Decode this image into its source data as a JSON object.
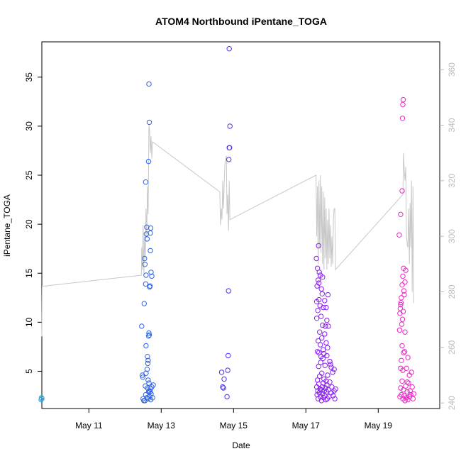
{
  "chart_data": {
    "type": "scatter",
    "title": "ATOM4 Northbound iPentane_TOGA",
    "xlabel": "Date",
    "ylabel": "iPentane_TOGA",
    "ylim": [
      1.2,
      38.6
    ],
    "y2lim": [
      238.0,
      370.0
    ],
    "xlim_days": [
      9.7,
      20.7
    ],
    "x_ticks": [
      {
        "day": 11,
        "label": "May 11"
      },
      {
        "day": 13,
        "label": "May 13"
      },
      {
        "day": 15,
        "label": "May 15"
      },
      {
        "day": 17,
        "label": "May 17"
      },
      {
        "day": 19,
        "label": "May 19"
      }
    ],
    "y_ticks": [
      5,
      10,
      15,
      20,
      25,
      30,
      35
    ],
    "y2_ticks": [
      240,
      260,
      280,
      300,
      320,
      340,
      360
    ],
    "colors": {
      "line": "#c8c8c8",
      "axis": "#000000",
      "right_axis": "#bbbbbb"
    },
    "series": [
      {
        "color": "#2aa7e0",
        "points": [
          [
            9.68,
            2.1
          ],
          [
            9.69,
            2.3
          ],
          [
            9.7,
            2.2
          ]
        ]
      },
      {
        "color": "#2f64e8",
        "points": [
          [
            12.5,
            2.2
          ],
          [
            12.52,
            2.0
          ],
          [
            12.56,
            3.5
          ],
          [
            12.57,
            2.6
          ],
          [
            12.58,
            4.8
          ],
          [
            12.6,
            2.3
          ],
          [
            12.61,
            5.2
          ],
          [
            12.62,
            3.3
          ],
          [
            12.63,
            2.2
          ],
          [
            12.64,
            4.1
          ],
          [
            12.65,
            2.9
          ],
          [
            12.66,
            3.8
          ],
          [
            12.67,
            3.0
          ],
          [
            12.68,
            2.4
          ],
          [
            12.7,
            3.2
          ],
          [
            12.71,
            2.1
          ],
          [
            12.72,
            2.7
          ],
          [
            12.74,
            3.4
          ],
          [
            12.76,
            2.3
          ],
          [
            12.78,
            3.6
          ],
          [
            12.46,
            9.6
          ],
          [
            12.48,
            4.6
          ],
          [
            12.49,
            4.4
          ],
          [
            12.53,
            11.9
          ],
          [
            12.54,
            16.5
          ],
          [
            12.55,
            15.9
          ],
          [
            12.57,
            13.9
          ],
          [
            12.58,
            14.8
          ],
          [
            12.59,
            19.0
          ],
          [
            12.6,
            19.7
          ],
          [
            12.61,
            18.5
          ],
          [
            12.63,
            5.8
          ],
          [
            12.64,
            6.1
          ],
          [
            12.65,
            8.6
          ],
          [
            12.66,
            8.9
          ],
          [
            12.67,
            8.7
          ],
          [
            12.68,
            13.6
          ],
          [
            12.69,
            13.7
          ],
          [
            12.7,
            17.3
          ],
          [
            12.7,
            19.1
          ],
          [
            12.71,
            19.6
          ],
          [
            12.72,
            15.1
          ],
          [
            12.74,
            14.7
          ],
          [
            12.57,
            24.3
          ],
          [
            12.65,
            26.4
          ],
          [
            12.67,
            30.4
          ],
          [
            12.66,
            34.3
          ],
          [
            12.58,
            7.6
          ],
          [
            12.62,
            6.5
          ],
          [
            12.55,
            2.0
          ],
          [
            12.69,
            2.9
          ]
        ]
      },
      {
        "color": "#4632ee",
        "points": [
          [
            14.67,
            4.9
          ],
          [
            14.7,
            3.4
          ],
          [
            14.72,
            3.3
          ],
          [
            14.74,
            4.2
          ],
          [
            14.82,
            2.4
          ],
          [
            14.84,
            5.1
          ],
          [
            14.85,
            6.6
          ],
          [
            14.86,
            13.2
          ],
          [
            14.87,
            26.6
          ],
          [
            14.88,
            27.8
          ],
          [
            14.89,
            27.8
          ],
          [
            14.9,
            30.0
          ],
          [
            14.88,
            37.9
          ]
        ]
      },
      {
        "color": "#8a1ef2",
        "points": [
          [
            17.3,
            3.4
          ],
          [
            17.31,
            2.6
          ],
          [
            17.32,
            4.1
          ],
          [
            17.33,
            3.0
          ],
          [
            17.34,
            2.2
          ],
          [
            17.35,
            5.5
          ],
          [
            17.36,
            3.7
          ],
          [
            17.37,
            2.8
          ],
          [
            17.38,
            4.5
          ],
          [
            17.39,
            3.2
          ],
          [
            17.4,
            2.4
          ],
          [
            17.41,
            5.9
          ],
          [
            17.42,
            3.1
          ],
          [
            17.43,
            2.0
          ],
          [
            17.44,
            4.8
          ],
          [
            17.45,
            3.4
          ],
          [
            17.46,
            2.7
          ],
          [
            17.47,
            6.3
          ],
          [
            17.48,
            3.8
          ],
          [
            17.49,
            2.3
          ],
          [
            17.5,
            4.2
          ],
          [
            17.51,
            3.0
          ],
          [
            17.52,
            2.5
          ],
          [
            17.53,
            5.6
          ],
          [
            17.54,
            3.3
          ],
          [
            17.55,
            2.1
          ],
          [
            17.56,
            4.0
          ],
          [
            17.57,
            2.9
          ],
          [
            17.58,
            3.6
          ],
          [
            17.59,
            2.2
          ],
          [
            17.6,
            4.6
          ],
          [
            17.62,
            3.1
          ],
          [
            17.64,
            2.4
          ],
          [
            17.66,
            3.9
          ],
          [
            17.68,
            5.7
          ],
          [
            17.7,
            2.8
          ],
          [
            17.72,
            3.4
          ],
          [
            17.75,
            2.5
          ],
          [
            17.78,
            3.0
          ],
          [
            17.8,
            2.2
          ],
          [
            17.82,
            3.2
          ],
          [
            17.32,
            7.0
          ],
          [
            17.34,
            8.1
          ],
          [
            17.36,
            6.9
          ],
          [
            17.38,
            9.0
          ],
          [
            17.4,
            7.7
          ],
          [
            17.42,
            6.5
          ],
          [
            17.44,
            8.4
          ],
          [
            17.46,
            9.7
          ],
          [
            17.48,
            7.2
          ],
          [
            17.5,
            6.8
          ],
          [
            17.52,
            8.8
          ],
          [
            17.54,
            9.6
          ],
          [
            17.56,
            7.9
          ],
          [
            17.58,
            6.6
          ],
          [
            17.6,
            7.4
          ],
          [
            17.3,
            10.4
          ],
          [
            17.33,
            11.2
          ],
          [
            17.36,
            12.3
          ],
          [
            17.39,
            11.7
          ],
          [
            17.42,
            10.6
          ],
          [
            17.45,
            12.9
          ],
          [
            17.48,
            11.5
          ],
          [
            17.52,
            12.2
          ],
          [
            17.56,
            11.5
          ],
          [
            17.31,
            13.7
          ],
          [
            17.34,
            14.3
          ],
          [
            17.37,
            15.1
          ],
          [
            17.4,
            14.8
          ],
          [
            17.43,
            13.4
          ],
          [
            17.46,
            14.6
          ],
          [
            17.29,
            16.5
          ],
          [
            17.32,
            15.5
          ],
          [
            17.36,
            14.0
          ],
          [
            17.3,
            12.1
          ],
          [
            17.62,
            9.6
          ],
          [
            17.66,
            6.0
          ],
          [
            17.7,
            5.4
          ],
          [
            17.74,
            4.9
          ],
          [
            17.78,
            5.2
          ],
          [
            17.35,
            17.8
          ],
          [
            17.58,
            10.2
          ],
          [
            17.61,
            12.8
          ]
        ]
      },
      {
        "color": "#e928c4",
        "points": [
          [
            19.6,
            2.4
          ],
          [
            19.62,
            3.3
          ],
          [
            19.64,
            2.6
          ],
          [
            19.66,
            4.0
          ],
          [
            19.68,
            2.2
          ],
          [
            19.7,
            3.1
          ],
          [
            19.72,
            2.5
          ],
          [
            19.74,
            2.0
          ],
          [
            19.76,
            3.5
          ],
          [
            19.78,
            2.3
          ],
          [
            19.8,
            2.9
          ],
          [
            19.82,
            2.1
          ],
          [
            19.84,
            3.8
          ],
          [
            19.86,
            2.4
          ],
          [
            19.88,
            3.0
          ],
          [
            19.9,
            2.6
          ],
          [
            19.92,
            4.9
          ],
          [
            19.94,
            3.4
          ],
          [
            19.96,
            2.2
          ],
          [
            19.98,
            2.7
          ],
          [
            19.62,
            5.3
          ],
          [
            19.64,
            6.1
          ],
          [
            19.66,
            7.6
          ],
          [
            19.68,
            5.1
          ],
          [
            19.7,
            6.9
          ],
          [
            19.73,
            7.0
          ],
          [
            19.78,
            5.3
          ],
          [
            19.82,
            6.4
          ],
          [
            19.86,
            4.6
          ],
          [
            19.6,
            10.9
          ],
          [
            19.62,
            11.8
          ],
          [
            19.64,
            12.5
          ],
          [
            19.66,
            13.8
          ],
          [
            19.68,
            14.7
          ],
          [
            19.7,
            15.5
          ],
          [
            19.61,
            11.4
          ],
          [
            19.63,
            12.0
          ],
          [
            19.65,
            9.8
          ],
          [
            19.67,
            10.3
          ],
          [
            19.69,
            11.1
          ],
          [
            19.71,
            13.2
          ],
          [
            19.72,
            12.8
          ],
          [
            19.74,
            14.1
          ],
          [
            19.76,
            15.3
          ],
          [
            19.59,
            9.2
          ],
          [
            19.58,
            18.9
          ],
          [
            19.62,
            21.0
          ],
          [
            19.66,
            23.4
          ],
          [
            19.67,
            30.8
          ],
          [
            19.68,
            32.2
          ],
          [
            19.69,
            32.7
          ],
          [
            19.74,
            9.0
          ],
          [
            19.8,
            3.9
          ]
        ]
      }
    ],
    "right_line": [
      [
        9.7,
        264
      ],
      [
        9.71,
        282
      ],
      [
        12.45,
        286
      ],
      [
        12.46,
        296
      ],
      [
        12.48,
        288
      ],
      [
        12.5,
        304
      ],
      [
        12.52,
        286
      ],
      [
        12.54,
        300
      ],
      [
        12.56,
        292
      ],
      [
        12.58,
        310
      ],
      [
        12.6,
        300
      ],
      [
        12.62,
        318
      ],
      [
        12.64,
        308
      ],
      [
        12.66,
        340
      ],
      [
        12.68,
        338
      ],
      [
        12.7,
        330
      ],
      [
        12.72,
        336
      ],
      [
        12.74,
        328
      ],
      [
        12.76,
        334
      ],
      [
        14.62,
        316
      ],
      [
        14.64,
        304
      ],
      [
        14.66,
        310
      ],
      [
        14.68,
        306
      ],
      [
        14.7,
        320
      ],
      [
        14.72,
        310
      ],
      [
        14.74,
        318
      ],
      [
        14.76,
        326
      ],
      [
        14.8,
        329
      ],
      [
        14.82,
        308
      ],
      [
        14.84,
        315
      ],
      [
        14.86,
        302
      ],
      [
        14.88,
        320
      ],
      [
        14.9,
        306
      ],
      [
        17.28,
        322
      ],
      [
        17.3,
        300
      ],
      [
        17.32,
        318
      ],
      [
        17.34,
        290
      ],
      [
        17.36,
        320
      ],
      [
        17.38,
        296
      ],
      [
        17.4,
        322
      ],
      [
        17.42,
        294
      ],
      [
        17.44,
        318
      ],
      [
        17.46,
        290
      ],
      [
        17.48,
        316
      ],
      [
        17.5,
        288
      ],
      [
        17.52,
        314
      ],
      [
        17.54,
        292
      ],
      [
        17.56,
        310
      ],
      [
        17.58,
        288
      ],
      [
        17.6,
        306
      ],
      [
        17.62,
        290
      ],
      [
        17.64,
        310
      ],
      [
        17.66,
        292
      ],
      [
        17.68,
        304
      ],
      [
        17.7,
        289
      ],
      [
        17.72,
        300
      ],
      [
        17.74,
        290
      ],
      [
        17.76,
        306
      ],
      [
        17.78,
        310
      ],
      [
        17.8,
        310
      ],
      [
        17.82,
        288
      ],
      [
        19.68,
        315
      ],
      [
        19.7,
        330
      ],
      [
        19.72,
        324
      ],
      [
        19.74,
        320
      ],
      [
        19.76,
        325
      ],
      [
        19.78,
        300
      ],
      [
        19.8,
        297
      ],
      [
        19.82,
        296
      ],
      [
        19.84,
        310
      ],
      [
        19.86,
        290
      ],
      [
        19.88,
        312
      ],
      [
        19.9,
        296
      ],
      [
        19.92,
        320
      ],
      [
        19.94,
        280
      ],
      [
        19.96,
        318
      ],
      [
        19.98,
        276
      ]
    ]
  }
}
